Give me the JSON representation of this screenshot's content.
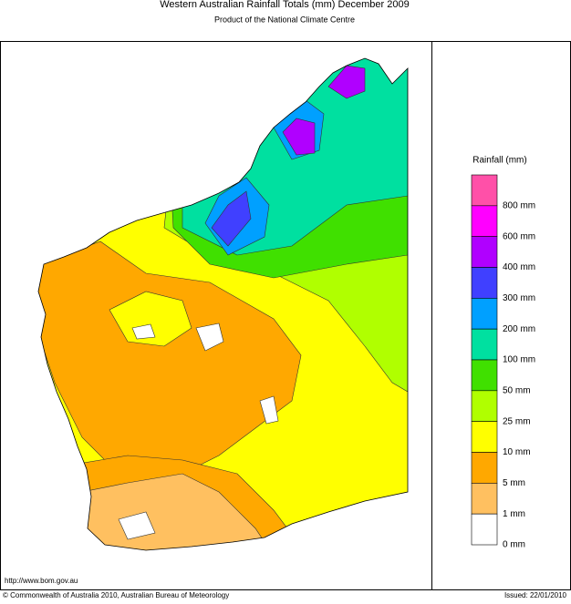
{
  "header": {
    "title": "Western Australian Rainfall Totals (mm) December 2009",
    "subtitle": "Product of the National Climate Centre"
  },
  "legend": {
    "title": "Rainfall (mm)",
    "items": [
      {
        "label": "800 mm",
        "color": "#ff50a8"
      },
      {
        "label": "600 mm",
        "color": "#ff00ff"
      },
      {
        "label": "400 mm",
        "color": "#b000ff"
      },
      {
        "label": "300 mm",
        "color": "#4040ff"
      },
      {
        "label": "200 mm",
        "color": "#00a0ff"
      },
      {
        "label": "100 mm",
        "color": "#00e0a0"
      },
      {
        "label": "50 mm",
        "color": "#40e000"
      },
      {
        "label": "25 mm",
        "color": "#b0ff00"
      },
      {
        "label": "10 mm",
        "color": "#ffff00"
      },
      {
        "label": "5 mm",
        "color": "#ffa800"
      },
      {
        "label": "1 mm",
        "color": "#ffc060"
      },
      {
        "label": "0 mm",
        "color": "#ffffff"
      }
    ]
  },
  "footer": {
    "url": "http://www.bom.gov.au",
    "copyright": "© Commonwealth of Australia 2010, Australian Bureau of Meteorology",
    "issued": "Issued: 22/01/2010"
  }
}
